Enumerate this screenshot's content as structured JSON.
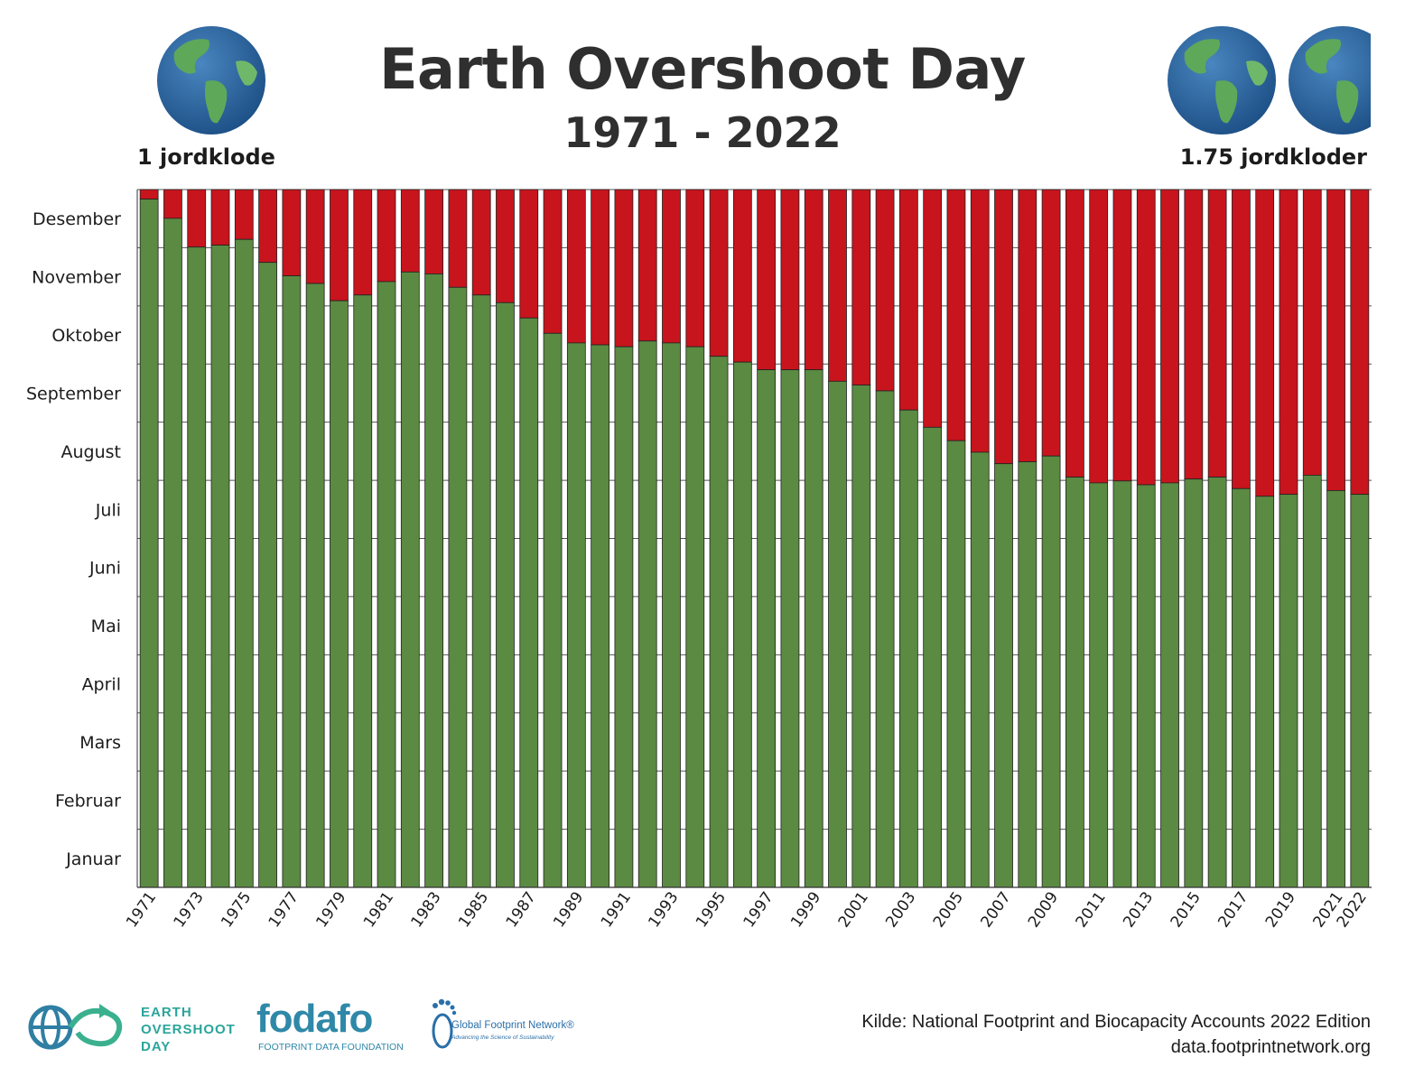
{
  "header": {
    "title": "Earth Overshoot Day",
    "subtitle": "1971 - 2022",
    "left_globe_label": "1 jordklode",
    "right_globe_label": "1.75 jordkloder"
  },
  "chart_data": {
    "type": "bar",
    "stacked": true,
    "title": "Earth Overshoot Day",
    "subtitle": "1971 - 2022",
    "xlabel": "",
    "ylabel": "",
    "y_unit": "day of year",
    "ylim": [
      1,
      365
    ],
    "y_ticks": [
      "Januar",
      "Februar",
      "Mars",
      "April",
      "Mai",
      "Juni",
      "Juli",
      "August",
      "September",
      "Oktober",
      "November",
      "Desember"
    ],
    "x_tick_labels": [
      "1971",
      "1973",
      "1975",
      "1977",
      "1979",
      "1981",
      "1983",
      "1985",
      "1987",
      "1989",
      "1991",
      "1993",
      "1995",
      "1997",
      "1999",
      "2001",
      "2003",
      "2005",
      "2007",
      "2009",
      "2011",
      "2013",
      "2015",
      "2017",
      "2019",
      "2021",
      "2022"
    ],
    "categories": [
      1971,
      1972,
      1973,
      1974,
      1975,
      1976,
      1977,
      1978,
      1979,
      1980,
      1981,
      1982,
      1983,
      1984,
      1985,
      1986,
      1987,
      1988,
      1989,
      1990,
      1991,
      1992,
      1993,
      1994,
      1995,
      1996,
      1997,
      1998,
      1999,
      2000,
      2001,
      2002,
      2003,
      2004,
      2005,
      2006,
      2007,
      2008,
      2009,
      2010,
      2011,
      2012,
      2013,
      2014,
      2015,
      2016,
      2017,
      2018,
      2019,
      2020,
      2021,
      2022
    ],
    "colors": {
      "within": "#5b8a42",
      "overshoot": "#c8141d",
      "grid": "#555555"
    },
    "series": [
      {
        "values": [
          360,
          350,
          335,
          336,
          339,
          327,
          320,
          316,
          307,
          310,
          317,
          322,
          321,
          314,
          310,
          306,
          298,
          290,
          285,
          284,
          283,
          286,
          285,
          283,
          278,
          275,
          271,
          271,
          271,
          265,
          263,
          260,
          250,
          241,
          234,
          228,
          222,
          223,
          226,
          215,
          212,
          213,
          211,
          212,
          214,
          215,
          209,
          205,
          206,
          216,
          208,
          206
        ]
      }
    ]
  },
  "footer": {
    "source_line1": "Kilde: National Footprint and Biocapacity Accounts 2022 Edition",
    "source_line2": "data.footprintnetwork.org",
    "eod_logo_line1": "EARTH",
    "eod_logo_line2": "OVERSHOOT",
    "eod_logo_line3": "DAY",
    "fodafo_word": "fodafo",
    "fodafo_sub": "FOOTPRINT DATA FOUNDATION",
    "gfn_name": "Global Footprint Network®",
    "gfn_sub": "Advancing the Science of Sustainability"
  }
}
